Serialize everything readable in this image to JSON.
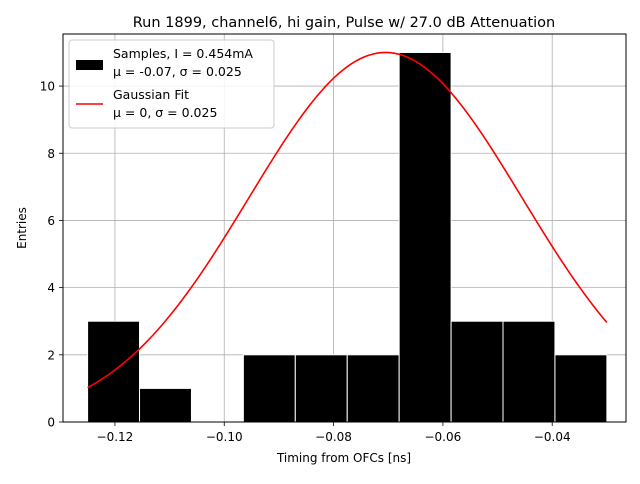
{
  "chart_data": {
    "type": "histogram",
    "title": "Run 1899, channel6, hi gain, Pulse w/ 27.0 dB Attenuation",
    "xlabel": "Timing from OFCs [ns]",
    "ylabel": "Entries",
    "xlim": [
      -0.1295,
      -0.0265
    ],
    "ylim": [
      0,
      11.55
    ],
    "xticks": [
      -0.12,
      -0.1,
      -0.08,
      -0.06,
      -0.04
    ],
    "xtick_labels": [
      "−0.12",
      "−0.10",
      "−0.08",
      "−0.06",
      "−0.04"
    ],
    "yticks": [
      0,
      2,
      4,
      6,
      8,
      10
    ],
    "ytick_labels": [
      "0",
      "2",
      "4",
      "6",
      "8",
      "10"
    ],
    "grid": true,
    "bars": [
      {
        "x0": -0.125,
        "x1": -0.1155,
        "value": 3
      },
      {
        "x0": -0.1155,
        "x1": -0.106,
        "value": 1
      },
      {
        "x0": -0.106,
        "x1": -0.0965,
        "value": 0
      },
      {
        "x0": -0.0965,
        "x1": -0.087,
        "value": 2
      },
      {
        "x0": -0.087,
        "x1": -0.0775,
        "value": 2
      },
      {
        "x0": -0.0775,
        "x1": -0.068,
        "value": 2
      },
      {
        "x0": -0.068,
        "x1": -0.0585,
        "value": 11
      },
      {
        "x0": -0.0585,
        "x1": -0.049,
        "value": 3
      },
      {
        "x0": -0.049,
        "x1": -0.0395,
        "value": 3
      },
      {
        "x0": -0.0395,
        "x1": -0.03,
        "value": 2
      }
    ],
    "fit": {
      "name": "Gaussian Fit",
      "amplitude": 11.0,
      "mean": -0.0705,
      "sigma": 0.025,
      "x_start": -0.125,
      "x_end": -0.03,
      "color": "#ff0000"
    },
    "bar_color": "#000000",
    "legend_position": "upper-left",
    "legend": [
      {
        "line1": "Samples, I = 0.454mA",
        "line2": "μ = -0.07, σ = 0.025"
      },
      {
        "line1": "Gaussian Fit",
        "line2": "μ = 0, σ = 0.025"
      }
    ]
  }
}
